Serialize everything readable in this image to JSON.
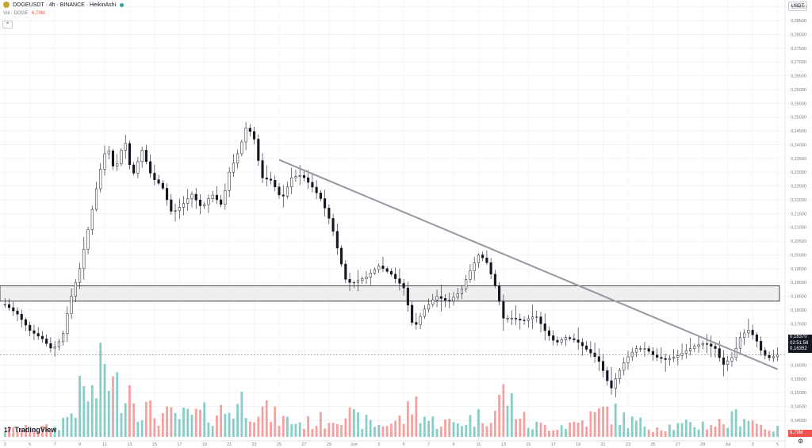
{
  "header": {
    "symbol_line": "DOGEUSDT · 4h · BINANCE · HeikinAshi",
    "volume_label": "Vol · DOGE",
    "volume_value": "6,79M",
    "collapse_glyph": "^"
  },
  "toolbar": {
    "currency": "USDT"
  },
  "branding": {
    "logo_text": "TradingView",
    "logo_mark": "17"
  },
  "settings_glyph": "⚙",
  "last_price": {
    "price": "0,16370",
    "countdown": "02:51:58",
    "prev": "0,16352"
  },
  "volume_badge": "6,79M",
  "colors": {
    "up": "#26a69a",
    "down": "#ef5350",
    "body": "#131722",
    "trendline": "#9598a1",
    "zone_fill": "#e8e8e8"
  },
  "chart_data": {
    "type": "candlestick",
    "style": "HeikinAshi",
    "timeframe": "4h",
    "y_axis": {
      "ylim": [
        0.1325,
        0.2925
      ],
      "ticks": [
        "0,29000",
        "0,28500",
        "0,28000",
        "0,27500",
        "0,27000",
        "0,26500",
        "0,26000",
        "0,25500",
        "0,25000",
        "0,24500",
        "0,24000",
        "0,23500",
        "0,23000",
        "0,22500",
        "0,22000",
        "0,21500",
        "0,21000",
        "0,20500",
        "0,20000",
        "0,19500",
        "0,19000",
        "0,18500",
        "0,18000",
        "0,17500",
        "0,17000",
        "0,16500",
        "0,16000",
        "0,15500",
        "0,15000",
        "0,14500",
        "0,14000",
        "0,13500"
      ],
      "tick_values": [
        0.29,
        0.285,
        0.28,
        0.275,
        0.27,
        0.265,
        0.26,
        0.255,
        0.25,
        0.245,
        0.24,
        0.235,
        0.23,
        0.225,
        0.22,
        0.215,
        0.21,
        0.205,
        0.2,
        0.195,
        0.19,
        0.185,
        0.18,
        0.175,
        0.17,
        0.165,
        0.16,
        0.155,
        0.15,
        0.145,
        0.14,
        0.135
      ]
    },
    "x_axis": {
      "xlim": [
        -0.2,
        31.3
      ],
      "labels": [
        "3",
        "5",
        "7",
        "9",
        "11",
        "13",
        "15",
        "17",
        "19",
        "21",
        "23",
        "25",
        "27",
        "29",
        "Jun",
        "3",
        "5",
        "7",
        "9",
        "11",
        "13",
        "15",
        "17",
        "19",
        "21",
        "23",
        "25",
        "27",
        "29",
        "Jul",
        "3",
        "5",
        "7"
      ],
      "label_days": [
        0,
        1,
        2,
        3,
        4,
        5,
        6,
        7,
        8,
        9,
        10,
        11,
        12,
        13,
        14,
        15,
        16,
        17,
        18,
        19,
        20,
        21,
        22,
        23,
        24,
        25,
        26,
        27,
        28,
        29,
        30,
        31,
        32
      ]
    },
    "trendline": {
      "x": [
        11,
        31.0
      ],
      "y": [
        0.2345,
        0.1585
      ]
    },
    "zone": {
      "x": [
        -0.2,
        31.3
      ],
      "y": [
        0.1832,
        0.1888
      ]
    },
    "current_price": 0.1637,
    "price_path": [
      [
        0,
        0.182
      ],
      [
        0.5,
        0.1785
      ],
      [
        1,
        0.1725
      ],
      [
        1.5,
        0.1695
      ],
      [
        1.9,
        0.1655
      ],
      [
        2.3,
        0.17
      ],
      [
        2.6,
        0.183
      ],
      [
        3,
        0.195
      ],
      [
        3.4,
        0.212
      ],
      [
        3.8,
        0.23
      ],
      [
        4.1,
        0.24
      ],
      [
        4.4,
        0.23
      ],
      [
        4.8,
        0.242
      ],
      [
        5.1,
        0.228
      ],
      [
        5.5,
        0.238
      ],
      [
        5.9,
        0.228
      ],
      [
        6.3,
        0.225
      ],
      [
        6.7,
        0.215
      ],
      [
        7.1,
        0.218
      ],
      [
        7.5,
        0.222
      ],
      [
        7.9,
        0.217
      ],
      [
        8.3,
        0.222
      ],
      [
        8.7,
        0.218
      ],
      [
        9.0,
        0.23
      ],
      [
        9.4,
        0.238
      ],
      [
        9.7,
        0.247
      ],
      [
        10.0,
        0.242
      ],
      [
        10.3,
        0.228
      ],
      [
        10.7,
        0.227
      ],
      [
        11.1,
        0.22
      ],
      [
        11.5,
        0.228
      ],
      [
        11.9,
        0.229
      ],
      [
        12.3,
        0.225
      ],
      [
        12.7,
        0.22
      ],
      [
        13.1,
        0.211
      ],
      [
        13.4,
        0.2
      ],
      [
        13.7,
        0.19
      ],
      [
        14.0,
        0.19
      ],
      [
        14.5,
        0.192
      ],
      [
        15.0,
        0.196
      ],
      [
        15.5,
        0.193
      ],
      [
        16.0,
        0.188
      ],
      [
        16.4,
        0.173
      ],
      [
        16.8,
        0.18
      ],
      [
        17.3,
        0.185
      ],
      [
        17.8,
        0.183
      ],
      [
        18.3,
        0.187
      ],
      [
        18.6,
        0.193
      ],
      [
        19.0,
        0.2
      ],
      [
        19.3,
        0.198
      ],
      [
        19.7,
        0.188
      ],
      [
        20.0,
        0.177
      ],
      [
        20.4,
        0.177
      ],
      [
        20.8,
        0.176
      ],
      [
        21.3,
        0.178
      ],
      [
        21.7,
        0.172
      ],
      [
        22.1,
        0.168
      ],
      [
        22.5,
        0.17
      ],
      [
        22.9,
        0.169
      ],
      [
        23.3,
        0.166
      ],
      [
        23.8,
        0.162
      ],
      [
        24.1,
        0.156
      ],
      [
        24.3,
        0.151
      ],
      [
        24.6,
        0.157
      ],
      [
        24.9,
        0.162
      ],
      [
        25.3,
        0.166
      ],
      [
        25.7,
        0.166
      ],
      [
        26.1,
        0.163
      ],
      [
        26.5,
        0.162
      ],
      [
        26.9,
        0.163
      ],
      [
        27.3,
        0.165
      ],
      [
        27.7,
        0.167
      ],
      [
        28.1,
        0.168
      ],
      [
        28.5,
        0.166
      ],
      [
        28.8,
        0.16
      ],
      [
        29.2,
        0.163
      ],
      [
        29.5,
        0.17
      ],
      [
        29.8,
        0.173
      ],
      [
        30.1,
        0.17
      ],
      [
        30.4,
        0.164
      ],
      [
        30.7,
        0.1625
      ],
      [
        31.0,
        0.1637
      ]
    ],
    "volume_envelope": [
      [
        0,
        0.8
      ],
      [
        2,
        1.0
      ],
      [
        2.6,
        2.5
      ],
      [
        3.1,
        5.0
      ],
      [
        3.6,
        4.5
      ],
      [
        4.0,
        8.5
      ],
      [
        4.4,
        5.0
      ],
      [
        4.9,
        6.5
      ],
      [
        5.4,
        3.5
      ],
      [
        6.0,
        2.5
      ],
      [
        7.0,
        2.2
      ],
      [
        8.0,
        2.5
      ],
      [
        9.0,
        3.0
      ],
      [
        9.5,
        4.0
      ],
      [
        10.0,
        3.5
      ],
      [
        11.0,
        2.0
      ],
      [
        12.0,
        1.5
      ],
      [
        13.0,
        2.0
      ],
      [
        13.5,
        3.0
      ],
      [
        14.0,
        2.0
      ],
      [
        15.0,
        1.3
      ],
      [
        16.0,
        2.0
      ],
      [
        16.4,
        4.0
      ],
      [
        17.0,
        1.8
      ],
      [
        18.0,
        1.5
      ],
      [
        19.0,
        2.2
      ],
      [
        19.7,
        3.0
      ],
      [
        20.0,
        5.0
      ],
      [
        21.0,
        1.3
      ],
      [
        22.0,
        1.2
      ],
      [
        23.0,
        1.6
      ],
      [
        24.2,
        3.0
      ],
      [
        25.0,
        1.8
      ],
      [
        26.0,
        1.2
      ],
      [
        27.0,
        1.2
      ],
      [
        28.0,
        1.4
      ],
      [
        29.0,
        1.6
      ],
      [
        29.6,
        2.8
      ],
      [
        30.2,
        1.4
      ],
      [
        31.0,
        0.8
      ]
    ]
  }
}
